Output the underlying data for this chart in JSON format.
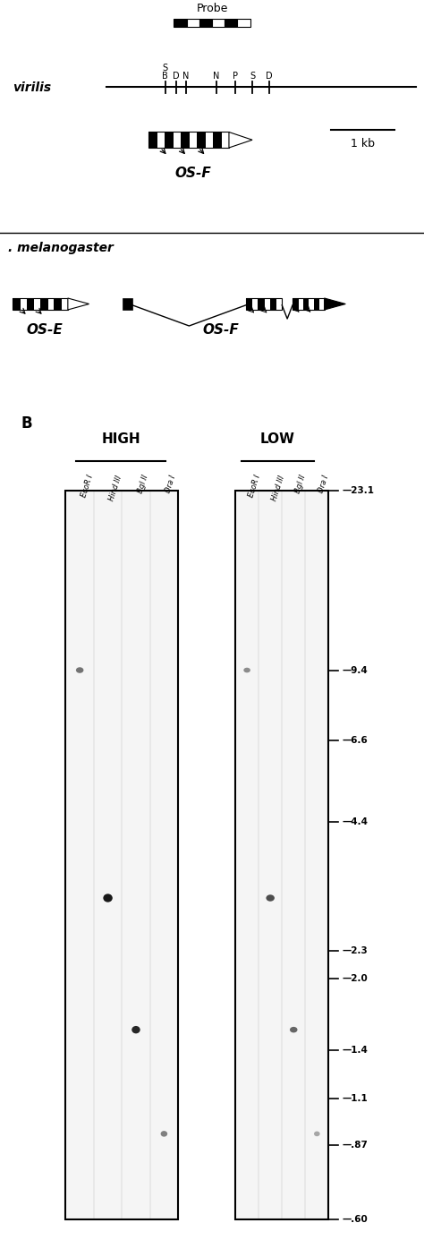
{
  "bg_color": "#ffffff",
  "probe_label": "Probe",
  "virilis_label": "virilis",
  "mel_label": ". melanogaster",
  "osf_label": "OS-F",
  "ose_label": "OS-E",
  "osf2_label": "OS-F",
  "scale_label": "1 kb",
  "panel_b_label": "B",
  "high_label": "HIGH",
  "low_label": "LOW",
  "lane_labels": [
    "EcoR I",
    "Hind III",
    "Bgl II",
    "Dra I"
  ],
  "marker_labels": [
    "23.1",
    "9.4",
    "6.6",
    "4.4",
    "2.3",
    "2.0",
    "1.4",
    "1.1",
    ".87",
    ".60"
  ],
  "marker_values": [
    23.1,
    9.4,
    6.6,
    4.4,
    2.3,
    2.0,
    1.4,
    1.1,
    0.87,
    0.6
  ],
  "high_bands": [
    {
      "lane": 0,
      "value": 9.4,
      "intensity": 0.55,
      "bwidth": 0.18,
      "bheight": 0.07
    },
    {
      "lane": 1,
      "value": 3.0,
      "intensity": 0.9,
      "bwidth": 0.22,
      "bheight": 0.1
    },
    {
      "lane": 2,
      "value": 1.55,
      "intensity": 0.85,
      "bwidth": 0.2,
      "bheight": 0.09
    },
    {
      "lane": 3,
      "value": 0.92,
      "intensity": 0.5,
      "bwidth": 0.16,
      "bheight": 0.07
    }
  ],
  "low_bands": [
    {
      "lane": 0,
      "value": 9.4,
      "intensity": 0.45,
      "bwidth": 0.16,
      "bheight": 0.06
    },
    {
      "lane": 1,
      "value": 3.0,
      "intensity": 0.7,
      "bwidth": 0.2,
      "bheight": 0.08
    },
    {
      "lane": 2,
      "value": 1.55,
      "intensity": 0.6,
      "bwidth": 0.18,
      "bheight": 0.07
    },
    {
      "lane": 3,
      "value": 0.92,
      "intensity": 0.35,
      "bwidth": 0.14,
      "bheight": 0.06
    }
  ],
  "fig_width": 4.74,
  "fig_height": 13.85,
  "dpi": 100
}
